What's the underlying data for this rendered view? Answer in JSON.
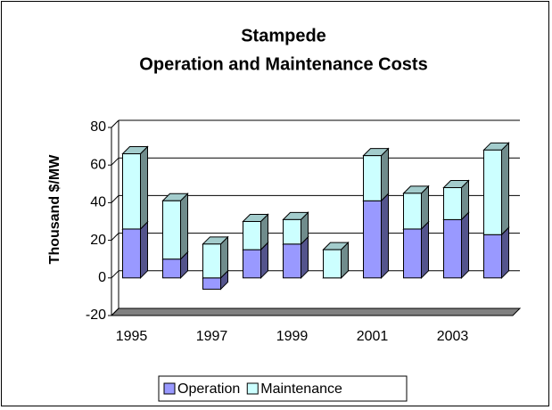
{
  "chart_data": {
    "type": "bar3d_stacked",
    "title": "Stampede",
    "subtitle": "Operation and Maintenance Costs",
    "ylabel": "Thousand $/MW",
    "categories": [
      "1995",
      null,
      "1997",
      null,
      "1999",
      null,
      "2001",
      null,
      "2003",
      null
    ],
    "series": [
      {
        "name": "Operation",
        "color": "#9999ff",
        "values": [
          26,
          10,
          -6,
          15,
          18,
          0,
          41,
          26,
          31,
          23
        ]
      },
      {
        "name": "Maintenance",
        "color": "#ccffff",
        "values": [
          40,
          31,
          18,
          15,
          13,
          15,
          24,
          19,
          17,
          45
        ]
      }
    ],
    "ylim": [
      -20,
      80
    ],
    "yticks": [
      -20,
      0,
      20,
      40,
      60,
      80
    ],
    "grid": true,
    "legend": "bottom"
  }
}
